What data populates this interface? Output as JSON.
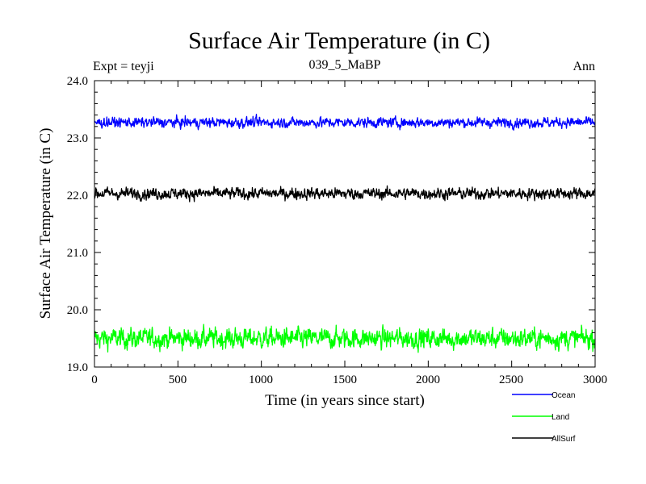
{
  "chart_data": {
    "type": "line",
    "title": "Surface Air Temperature (in C)",
    "subtitle": "039_5_MaBP",
    "left_label": "Expt = teyji",
    "right_label": "Ann",
    "xlabel": "Time (in years since start)",
    "ylabel": "Surface Air Temperature (in C)",
    "xlim": [
      0,
      3000
    ],
    "ylim": [
      19.0,
      24.0
    ],
    "x_ticks": [
      0,
      500,
      1000,
      1500,
      2000,
      2500,
      3000
    ],
    "x_tick_labels": [
      "0",
      "500",
      "1000",
      "1500",
      "2000",
      "2500",
      "3000"
    ],
    "y_ticks": [
      19.0,
      20.0,
      21.0,
      22.0,
      23.0,
      24.0
    ],
    "y_tick_labels": [
      "19.0",
      "20.0",
      "21.0",
      "22.0",
      "23.0",
      "24.0"
    ],
    "series": [
      {
        "name": "Ocean",
        "color": "#0000ff",
        "mean": 23.27,
        "amplitude": 0.07,
        "min": 23.1,
        "max": 23.42
      },
      {
        "name": "Land",
        "color": "#00ff00",
        "mean": 19.5,
        "amplitude": 0.14,
        "min": 19.1,
        "max": 19.98
      },
      {
        "name": "AllSurf",
        "color": "#000000",
        "mean": 22.03,
        "amplitude": 0.08,
        "min": 21.8,
        "max": 22.28
      }
    ],
    "legend_position": "bottom-right"
  }
}
